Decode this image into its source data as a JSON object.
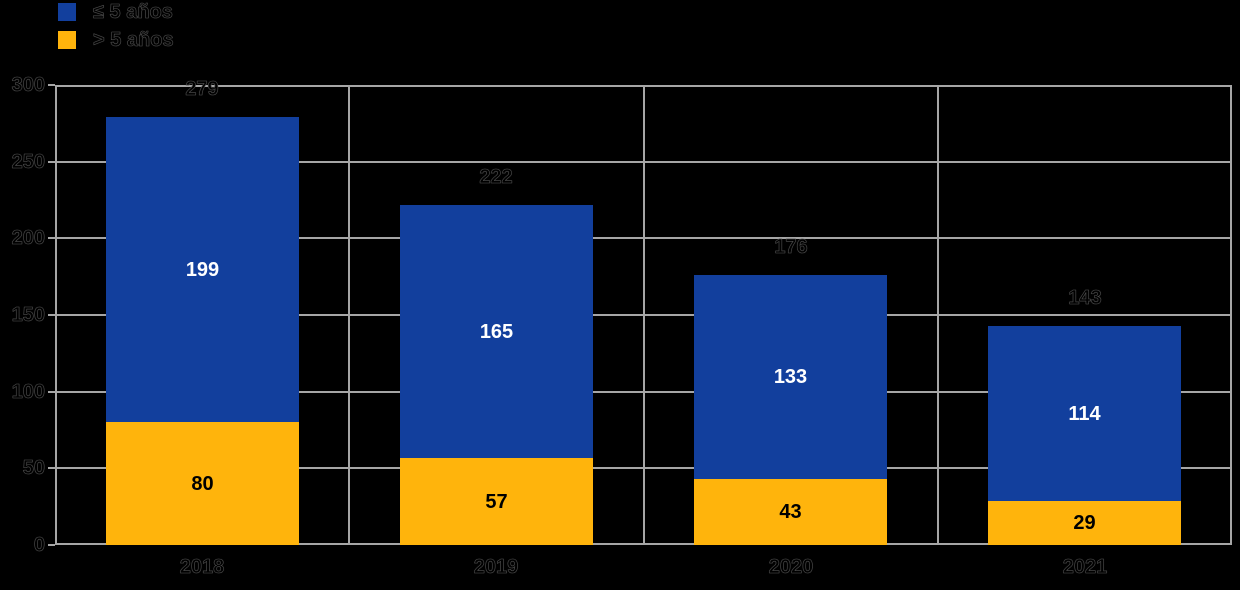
{
  "chart_data": {
    "type": "bar",
    "stacked": true,
    "title": "",
    "categories": [
      "2018",
      "2019",
      "2020",
      "2021"
    ],
    "series": [
      {
        "name": "≤ 5 años",
        "color": "#123F9D",
        "label_color": "#FFFFFF",
        "values": [
          199,
          165,
          133,
          114
        ]
      },
      {
        "name": "> 5 años",
        "color": "#FFB40C",
        "label_color": "#000000",
        "values": [
          80,
          57,
          43,
          29
        ]
      }
    ],
    "totals": [
      279,
      222,
      176,
      143
    ],
    "ylim": [
      0,
      300
    ],
    "yticks": [
      0,
      50,
      100,
      150,
      200,
      250,
      300
    ],
    "grid": true,
    "legend_position": "top-left",
    "colors": {
      "background": "#000000",
      "gridline": "#A6A6A6",
      "axis_text": "#000000",
      "blue_series": "#123F9D",
      "orange_series": "#FFB40C"
    }
  }
}
